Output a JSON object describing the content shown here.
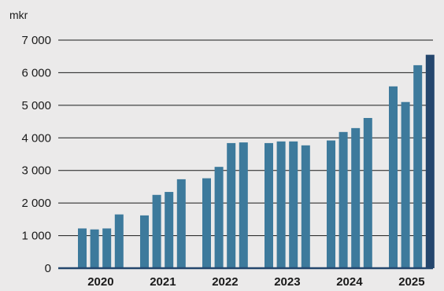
{
  "chart_data": {
    "type": "bar",
    "unit_label": "mkr",
    "ylim": [
      0,
      7000
    ],
    "yticks": [
      0,
      1000,
      2000,
      3000,
      4000,
      5000,
      6000,
      7000
    ],
    "ytick_labels": [
      "0",
      "1 000",
      "2 000",
      "3 000",
      "4 000",
      "5 000",
      "6 000",
      "7 000"
    ],
    "grid": true,
    "groups": [
      {
        "label": "2020",
        "values": [
          1220,
          1190,
          1220,
          1650
        ]
      },
      {
        "label": "2021",
        "values": [
          1620,
          2250,
          2340,
          2730
        ]
      },
      {
        "label": "2022",
        "values": [
          2760,
          3110,
          3840,
          3860
        ]
      },
      {
        "label": "2023",
        "values": [
          3840,
          3890,
          3890,
          3770
        ]
      },
      {
        "label": "2024",
        "values": [
          3920,
          4180,
          4300,
          4610
        ]
      },
      {
        "label": "2025",
        "values": [
          5580,
          5100,
          6230,
          6550
        ]
      }
    ],
    "colors": {
      "bar": "#3d7a9c",
      "bar_latest": "#24466d",
      "axis": "#24466d",
      "grid": "#1a1a1a"
    }
  }
}
